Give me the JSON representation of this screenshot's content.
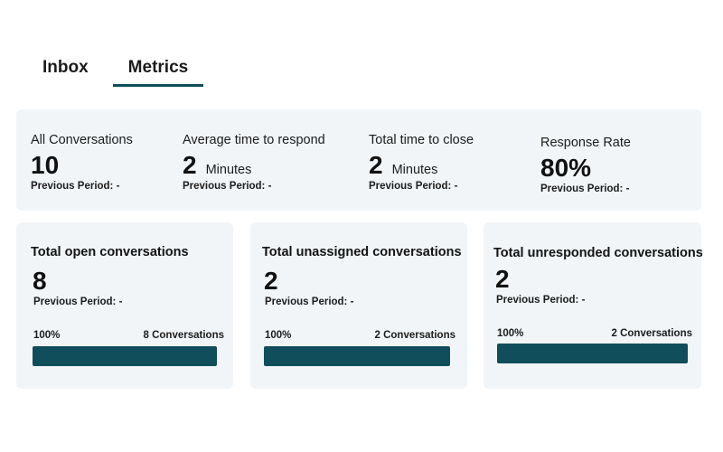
{
  "tabs": [
    {
      "label": "Inbox",
      "active": false
    },
    {
      "label": "Metrics",
      "active": true
    }
  ],
  "summary": {
    "all_conversations": {
      "label": "All Conversations",
      "value": "10",
      "unit": "",
      "previous": "Previous Period: -"
    },
    "avg_time_to_respond": {
      "label": "Average time to respond",
      "value": "2",
      "unit": "Minutes",
      "previous": "Previous Period: -"
    },
    "total_time_to_close": {
      "label": "Total time to close",
      "value": "2",
      "unit": "Minutes",
      "previous": "Previous Period: -"
    },
    "response_rate": {
      "label": "Response Rate",
      "value": "80%",
      "unit": "",
      "previous": "Previous Period: -"
    }
  },
  "cards": [
    {
      "title": "Total open conversations",
      "value": "8",
      "previous": "Previous Period: -",
      "percent_label": "100%",
      "count_label": "8 Conversations",
      "fill_fraction": 1.0
    },
    {
      "title": "Total unassigned conversations",
      "value": "2",
      "previous": "Previous Period: -",
      "percent_label": "100%",
      "count_label": "2 Conversations",
      "fill_fraction": 1.0
    },
    {
      "title": "Total unresponded conversations",
      "value": "2",
      "previous": "Previous Period: -",
      "percent_label": "100%",
      "count_label": "2 Conversations",
      "fill_fraction": 1.0
    }
  ],
  "colors": {
    "accent": "#0f4e5a",
    "card_background": "#f1f5f8"
  }
}
